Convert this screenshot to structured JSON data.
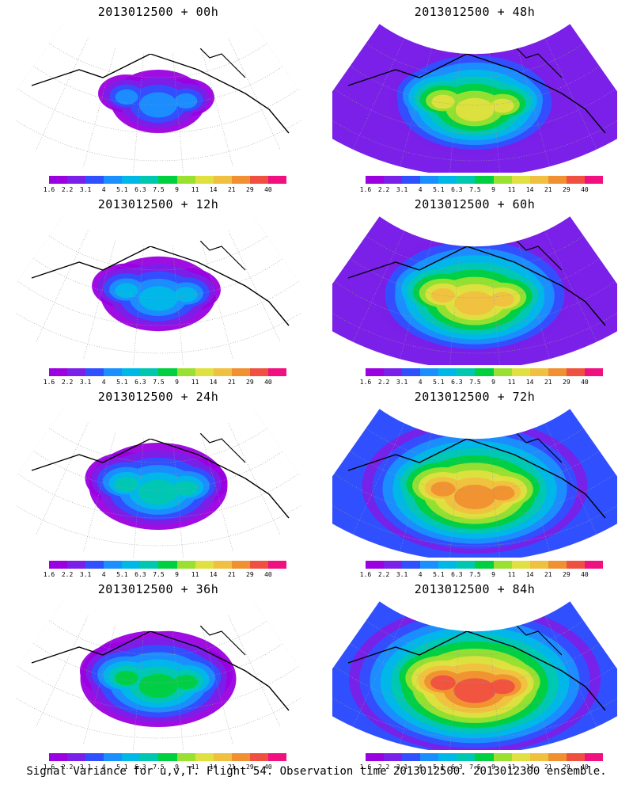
{
  "caption": "Signal Variance for u,v,T. Flight 54. Observation time 2013012500. 2013012300 ensemble.",
  "colorbar": {
    "labels": [
      "1.6",
      "2.2",
      "3.1",
      "4",
      "5.1",
      "6.3",
      "7.5",
      "9",
      "11",
      "14",
      "21",
      "29",
      "40"
    ],
    "colors": [
      "#9b00e0",
      "#7a20e8",
      "#3050ff",
      "#1a90ff",
      "#00b8e8",
      "#00c8b0",
      "#00d040",
      "#9ae030",
      "#e0e040",
      "#f0c040",
      "#f09030",
      "#f05040",
      "#f01080"
    ]
  },
  "panels": [
    {
      "title": "2013012500 + 00h",
      "level": 0.0
    },
    {
      "title": "2013012500 + 48h",
      "level": 0.45
    },
    {
      "title": "2013012500 + 12h",
      "level": 0.12
    },
    {
      "title": "2013012500 + 60h",
      "level": 0.6
    },
    {
      "title": "2013012500 + 24h",
      "level": 0.25
    },
    {
      "title": "2013012500 + 72h",
      "level": 0.75
    },
    {
      "title": "2013012500 + 36h",
      "level": 0.35
    },
    {
      "title": "2013012500 + 84h",
      "level": 0.9
    }
  ]
}
